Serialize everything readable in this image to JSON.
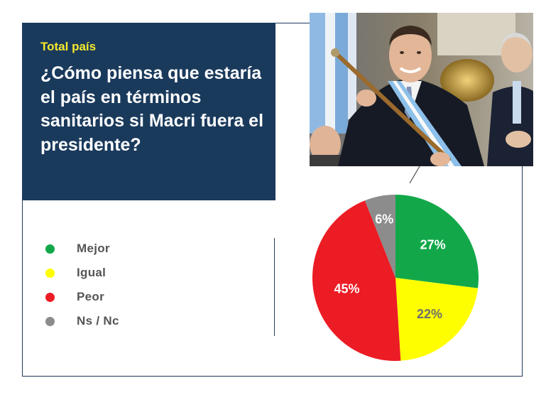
{
  "header": {
    "subtitle": "Total país",
    "title": "¿Cómo piensa que estaría el país en términos sanitarios si Macri fuera el presidente?"
  },
  "colors": {
    "title_bg": "#1a3a5c",
    "subtitle": "#f5e92c",
    "mejor": "#12a84a",
    "igual": "#fefe00",
    "peor": "#ec1c24",
    "nsnc": "#8c8c8c"
  },
  "legend": [
    {
      "label": "Mejor",
      "color": "#12a84a"
    },
    {
      "label": "Igual",
      "color": "#fefe00"
    },
    {
      "label": "Peor",
      "color": "#ec1c24"
    },
    {
      "label": "Ns / Nc",
      "color": "#8c8c8c"
    }
  ],
  "chart_data": {
    "type": "pie",
    "title": "¿Cómo piensa que estaría el país en términos sanitarios si Macri fuera el presidente?",
    "subtitle": "Total país",
    "categories": [
      "Mejor",
      "Igual",
      "Peor",
      "Ns / Nc"
    ],
    "values": [
      27,
      22,
      45,
      6
    ],
    "labels": [
      "27%",
      "22%",
      "45%",
      "6%"
    ],
    "colors": [
      "#12a84a",
      "#fefe00",
      "#ec1c24",
      "#8c8c8c"
    ],
    "label_colors": [
      "#ffffff",
      "#6f6f6f",
      "#ffffff",
      "#ffffff"
    ],
    "legend_position": "left"
  },
  "photo": {
    "icon": "photo-of-president-holding-baton"
  }
}
